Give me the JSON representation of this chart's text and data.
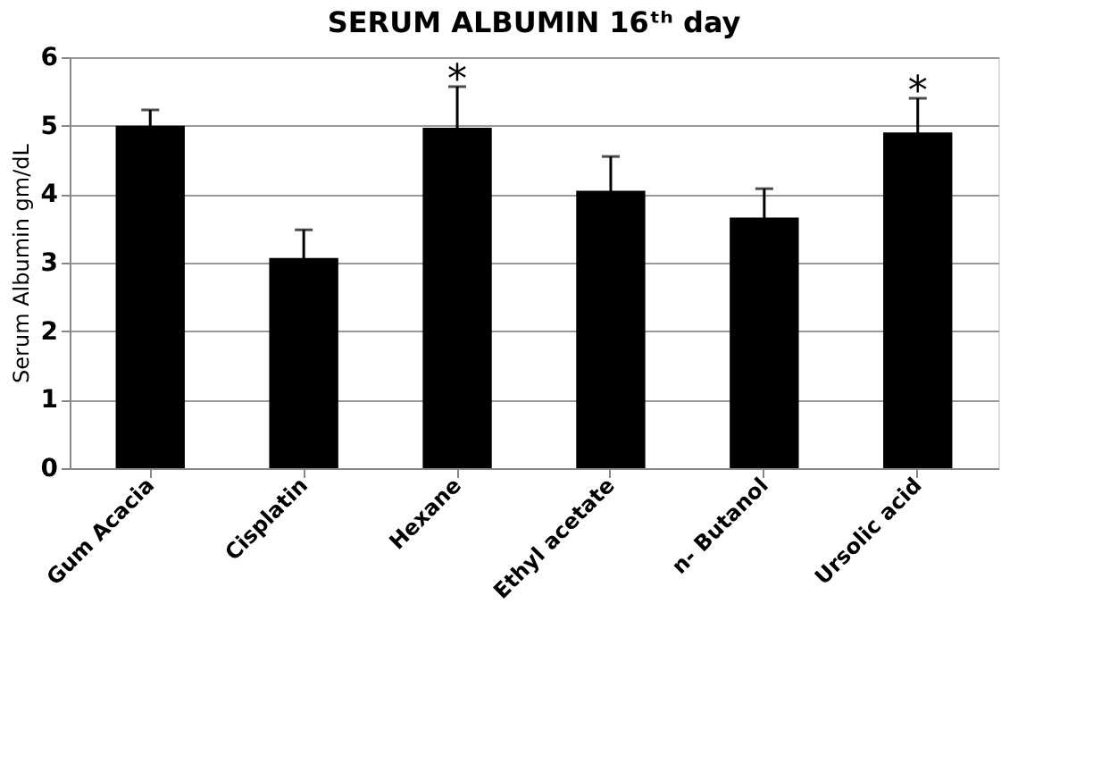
{
  "chart_data": {
    "type": "bar",
    "title": "SERUM ALBUMIN 16ᵗʰ day",
    "ylabel": "Serum Albumin gm/dL",
    "categories": [
      "Gum Acacia",
      "Cisplatin",
      "Hexane",
      "Ethyl acetate",
      "n- Butanol",
      "Ursolic acid"
    ],
    "values": [
      5.0,
      3.07,
      4.97,
      4.05,
      3.66,
      4.9
    ],
    "errors": [
      0.23,
      0.41,
      0.6,
      0.5,
      0.42,
      0.5
    ],
    "color": "#000000",
    "ylim": [
      0,
      6
    ],
    "yticks": [
      0,
      1,
      2,
      3,
      4,
      5,
      6
    ],
    "grid": "y",
    "annotations": [
      {
        "text": "*",
        "x": "Hexane",
        "y": 5.57
      },
      {
        "text": "*",
        "x": "Ursolic acid",
        "y": 5.4
      }
    ]
  }
}
